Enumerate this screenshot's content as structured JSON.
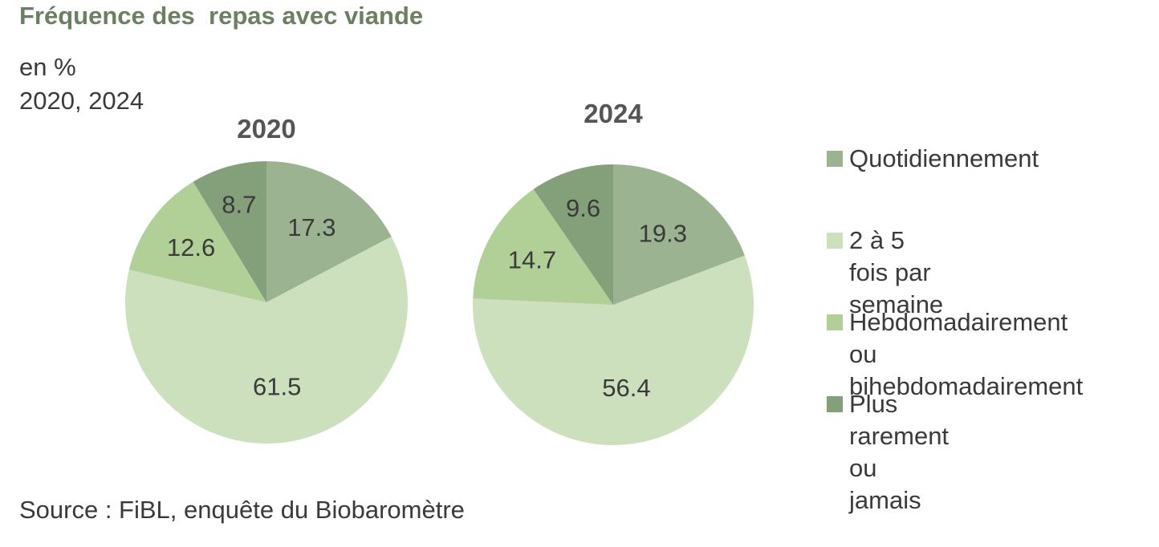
{
  "title": "Fréquence des  repas avec viande",
  "unit": "en %",
  "years": "2020, 2024",
  "source": "Source : FiBL, enquête du Biobaromètre",
  "colors": {
    "quotidiennement": "#9bb391",
    "deux_a_cinq": "#cde0bd",
    "hebdomadaire": "#b0d097",
    "rarement": "#84a07a"
  },
  "legend": [
    {
      "label": "Quotidiennement",
      "color": "#9bb391"
    },
    {
      "label": "2 à 5 fois par semaine",
      "color": "#cde0bd"
    },
    {
      "label": "Hebdomadairement ou\nbihebdomadairement",
      "color": "#b0d097"
    },
    {
      "label": "Plus rarement ou jamais",
      "color": "#84a07a"
    }
  ],
  "chart_data": [
    {
      "type": "pie",
      "title": "2020",
      "categories": [
        "Quotidiennement",
        "2 à 5 fois par semaine",
        "Hebdomadairement ou bihebdomadairement",
        "Plus rarement ou jamais"
      ],
      "values": [
        17.3,
        61.5,
        12.6,
        8.7
      ],
      "labels": [
        "17.3",
        "61.5",
        "12.6",
        "8.7"
      ],
      "colors": [
        "#9bb391",
        "#cde0bd",
        "#b0d097",
        "#84a07a"
      ]
    },
    {
      "type": "pie",
      "title": "2024",
      "categories": [
        "Quotidiennement",
        "2 à 5 fois par semaine",
        "Hebdomadairement ou bihebdomadairement",
        "Plus rarement ou jamais"
      ],
      "values": [
        19.3,
        56.4,
        14.7,
        9.6
      ],
      "labels": [
        "19.3",
        "56.4",
        "14.7",
        "9.6"
      ],
      "colors": [
        "#9bb391",
        "#cde0bd",
        "#b0d097",
        "#84a07a"
      ]
    }
  ]
}
